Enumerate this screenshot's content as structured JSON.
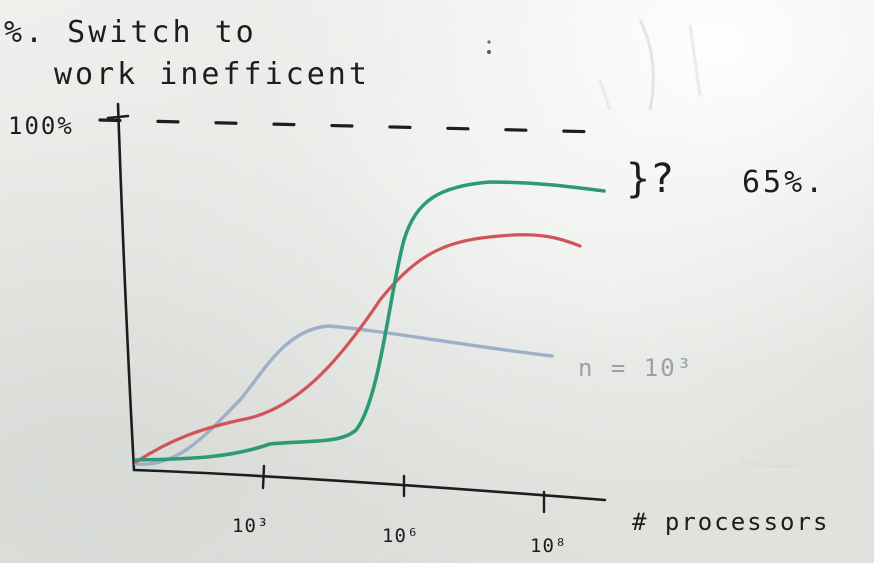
{
  "annotations": {
    "title_line1": "%. Switch to",
    "title_line2": "work inefficent",
    "y_top_label": "100%",
    "side_question": "}?",
    "side_value": "65%.",
    "curve_label": "n = 10³",
    "x_axis_label": "# processors"
  },
  "ticks": {
    "t1": "10³",
    "t2": "10⁶",
    "t3": "10⁸"
  },
  "colors": {
    "ink": "#1d1d1f",
    "green": "#2e9a74",
    "red": "#d0545a",
    "blue": "#9db0c8",
    "gray_ink": "#9aa1a8"
  }
}
